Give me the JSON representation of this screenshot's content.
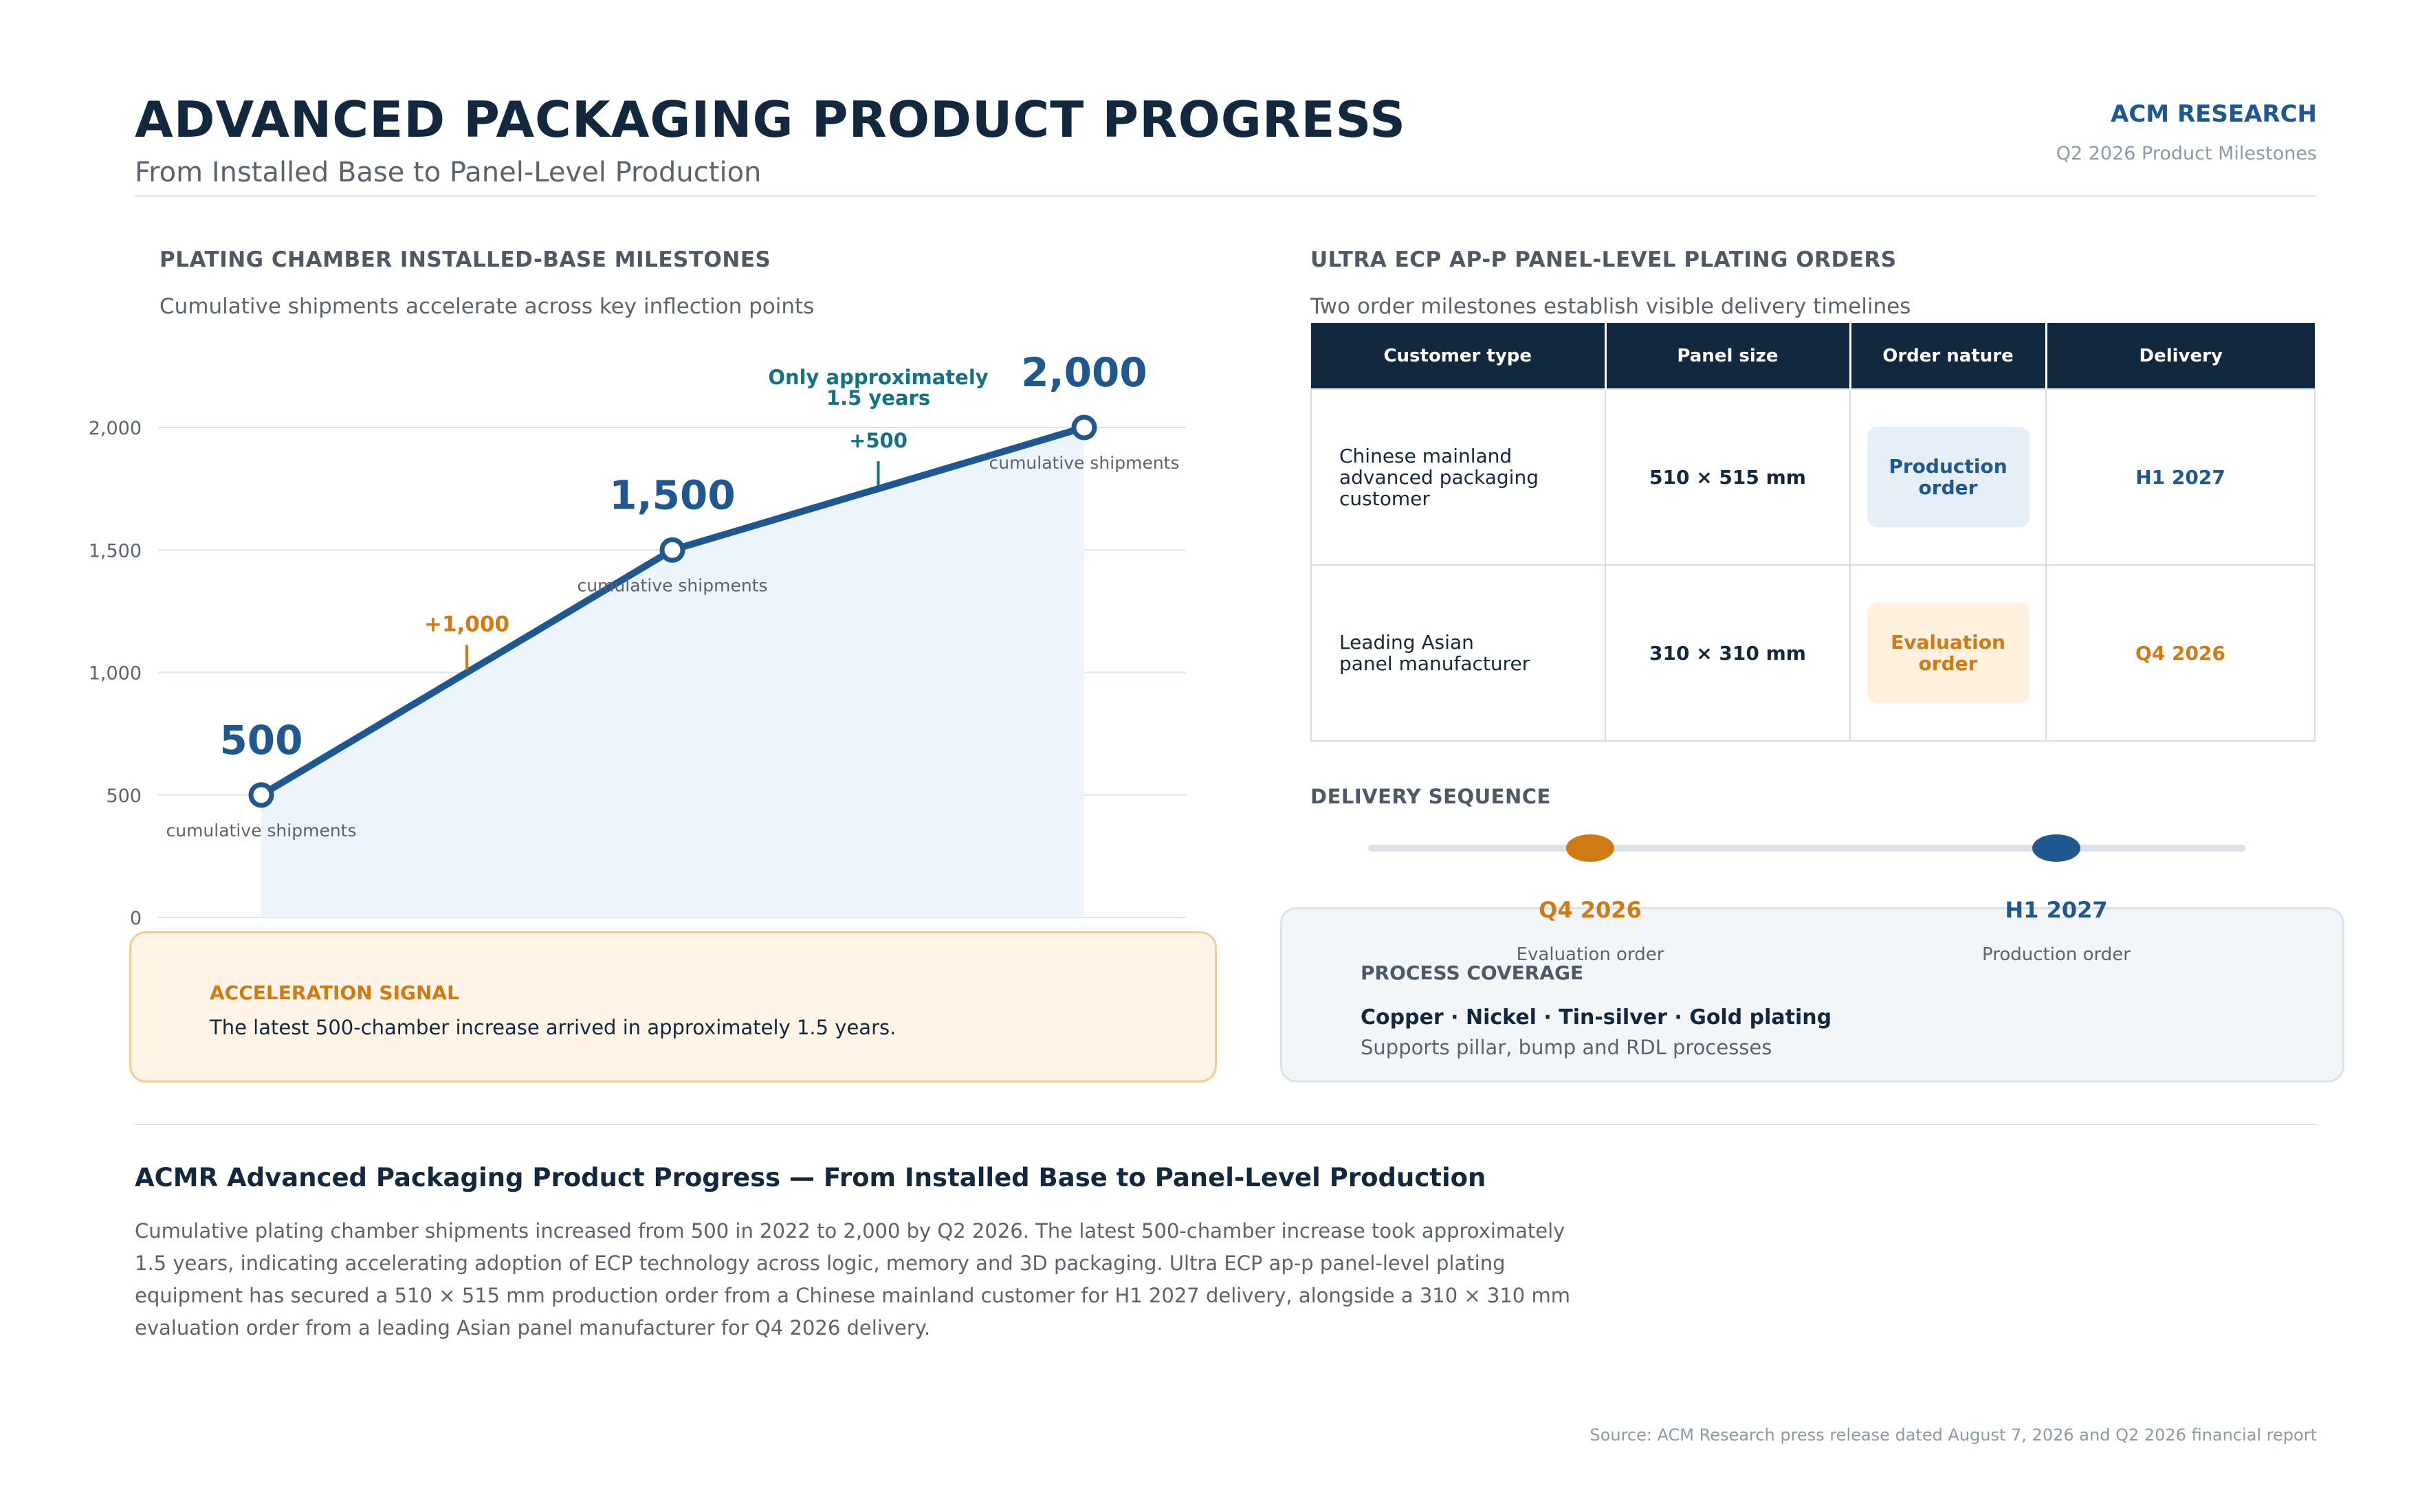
{
  "header": {
    "title": "ADVANCED PACKAGING PRODUCT PROGRESS",
    "subtitle": "From Installed Base to Panel-Level Production",
    "brand": "ACM RESEARCH",
    "brand_sub": "Q2 2026 Product Milestones"
  },
  "left_panel": {
    "heading": "PLATING CHAMBER INSTALLED-BASE MILESTONES",
    "subheading": "Cumulative shipments accelerate across key inflection points"
  },
  "chart_data": {
    "type": "line",
    "title": "",
    "xlabel": "",
    "ylabel": "",
    "ylim": [
      0,
      2000
    ],
    "yticks": [
      0,
      500,
      1000,
      1500,
      2000
    ],
    "ytick_labels": [
      "0",
      "500",
      "1,000",
      "1,500",
      "2,000"
    ],
    "grid": true,
    "fill_under": true,
    "x": [
      0,
      1,
      2
    ],
    "values": [
      500,
      1500,
      2000
    ],
    "value_labels": [
      "500",
      "1,500",
      "2,000"
    ],
    "point_sublabel": "cumulative shipments",
    "annotations": [
      {
        "between": [
          0,
          1
        ],
        "text": "+1,000",
        "color": "#d17a14"
      },
      {
        "between": [
          1,
          2
        ],
        "text": "+500",
        "note_lines": [
          "Only approximately",
          "1.5 years"
        ],
        "color": "#157186"
      }
    ],
    "colors": {
      "line": "#1f5890",
      "fill": "#eef4fb",
      "grid": "#dde3ea"
    }
  },
  "accel": {
    "title": "ACCELERATION SIGNAL",
    "text": "The latest 500-chamber increase arrived in approximately 1.5 years."
  },
  "right_panel": {
    "heading": "ULTRA ECP AP-P PANEL-LEVEL PLATING ORDERS",
    "subheading": "Two order milestones establish visible delivery timelines"
  },
  "table": {
    "headers": [
      "Customer type",
      "Panel size",
      "Order nature",
      "Delivery"
    ],
    "rows": [
      {
        "customer": [
          "Chinese mainland",
          "advanced packaging",
          "customer"
        ],
        "size": "510 × 515 mm",
        "nature": [
          "Production",
          "order"
        ],
        "delivery": "H1 2027"
      },
      {
        "customer": [
          "Leading Asian",
          "panel manufacturer"
        ],
        "size": "310 × 310 mm",
        "nature": [
          "Evaluation",
          "order"
        ],
        "delivery": "Q4 2026"
      }
    ]
  },
  "sequence": {
    "heading": "DELIVERY SEQUENCE",
    "items": [
      {
        "date": "Q4 2026",
        "kind": "Evaluation order",
        "color": "#d17a14"
      },
      {
        "date": "H1 2027",
        "kind": "Production order",
        "color": "#1f5890"
      }
    ]
  },
  "process": {
    "title": "PROCESS COVERAGE",
    "list": "Copper  ·  Nickel  ·  Tin-silver  ·  Gold plating",
    "note": "Supports pillar, bump and RDL processes"
  },
  "summary": {
    "title": "ACMR Advanced Packaging Product Progress — From Installed Base to Panel-Level Production",
    "body": "Cumulative plating chamber shipments increased from 500 in 2022 to 2,000 by Q2 2026. The latest 500-chamber increase took approximately 1.5 years, indicating accelerating adoption of ECP technology across logic, memory and 3D packaging. Ultra ECP ap-p panel-level plating equipment has secured a 510 × 515 mm production order from a Chinese mainland customer for H1 2027 delivery, alongside a 310 × 310 mm evaluation order from a leading Asian panel manufacturer for Q4 2026 delivery."
  },
  "source": "Source: ACM Research press release dated August 7, 2026 and Q2 2026 financial report",
  "colors": {
    "navy": "#12283f",
    "blue": "#1f5890",
    "orange": "#d17a14",
    "teal": "#157186"
  }
}
